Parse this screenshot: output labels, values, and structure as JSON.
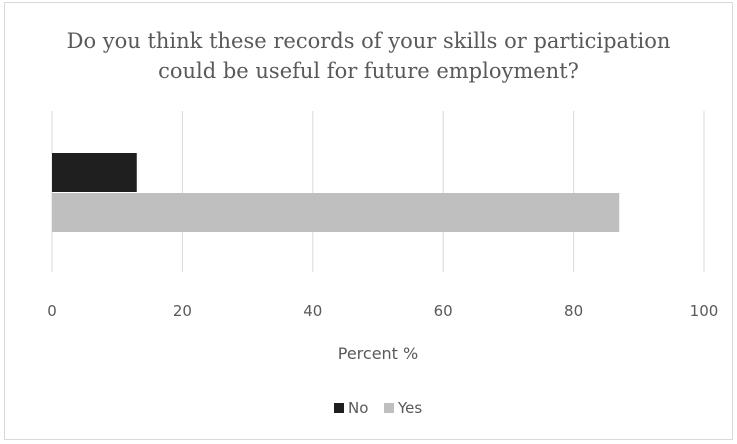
{
  "chart_data": {
    "type": "bar",
    "orientation": "horizontal",
    "title_lines": [
      "Do you think these records of your skills or participation",
      "could be useful for future employment?"
    ],
    "series": [
      {
        "name": "No",
        "value": 13,
        "color": "#1f1f1f"
      },
      {
        "name": "Yes",
        "value": 87,
        "color": "#bfbfbf"
      }
    ],
    "xlim": [
      0,
      100
    ],
    "xticks": [
      "0",
      "20",
      "40",
      "60",
      "80",
      "100"
    ],
    "xlabel": "Percent %",
    "grid": "vertical",
    "legend": "bottom"
  }
}
